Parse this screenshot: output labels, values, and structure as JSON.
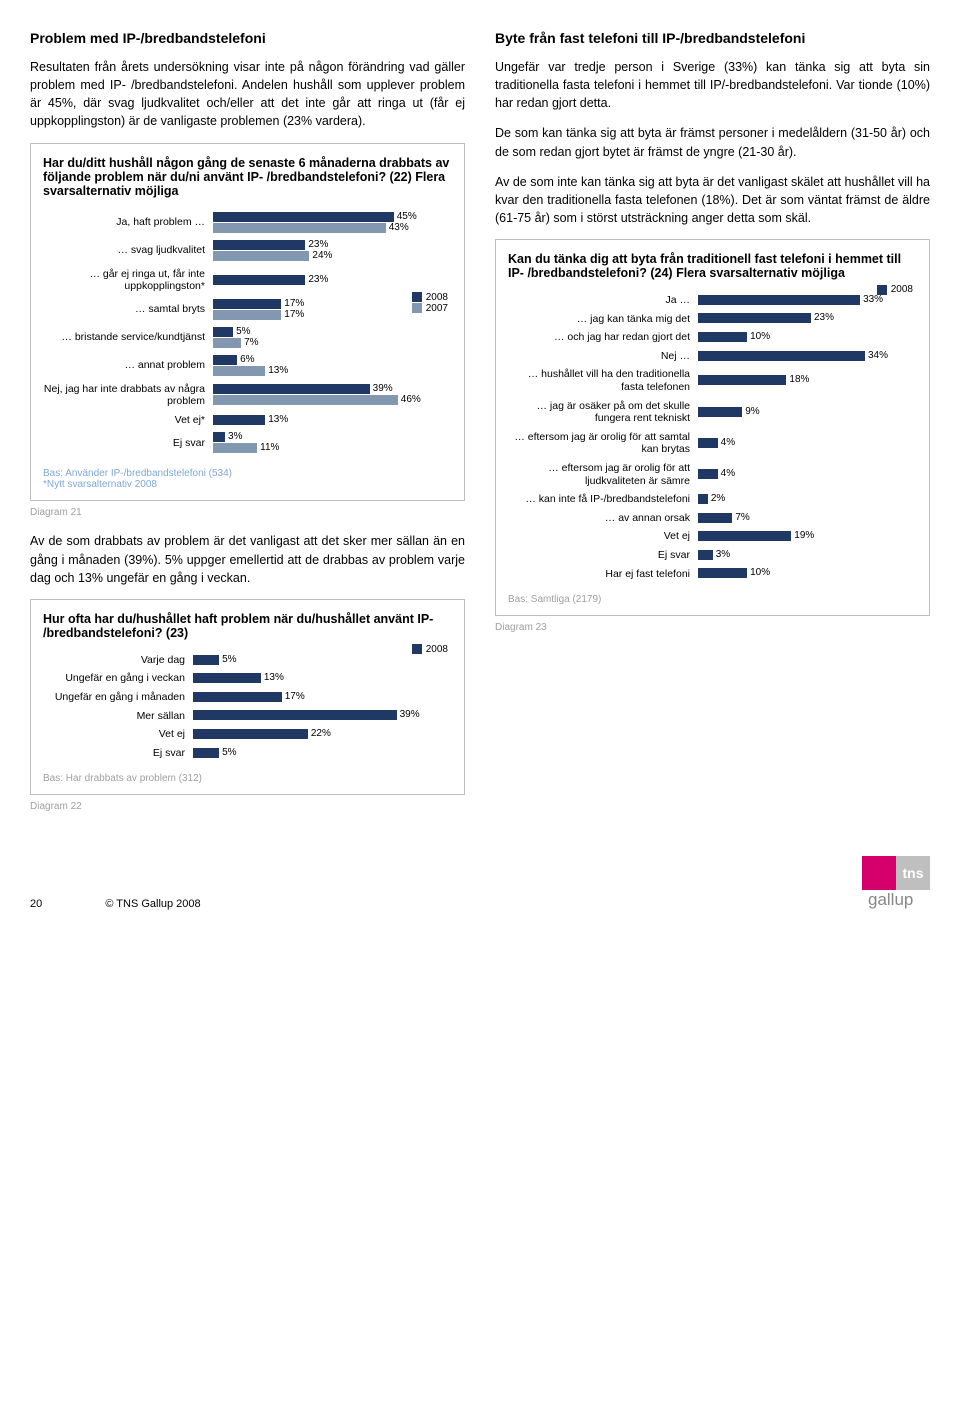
{
  "colors": {
    "c2008": "#1f3864",
    "c2007": "#8497b0",
    "border": "#bfbfbf",
    "base_text": "#7fa8d9",
    "grey_text": "#a0a0a0"
  },
  "left": {
    "heading": "Problem med IP-/bredbandstelefoni",
    "p1": "Resultaten från årets undersökning visar inte på någon förändring vad gäller problem med IP- /bredbandstelefoni. Andelen hushåll som upplever problem är 45%, där svag ljudkvalitet och/eller att det inte går att ringa ut (får ej uppkopplingston) är de vanligaste problemen (23% vardera).",
    "chart1": {
      "title": "Har du/ditt hushåll någon gång de senaste 6 månaderna drabbats av följande problem när du/ni använt IP- /bredbandstelefoni? (22) Flera svarsalternativ möjliga",
      "rows": [
        {
          "label": "Ja, haft problem …",
          "v": [
            45,
            43
          ]
        },
        {
          "label": "… svag ljudkvalitet",
          "v": [
            23,
            24
          ]
        },
        {
          "label": "… går ej ringa ut, får inte uppkopplingston*",
          "v": [
            23,
            null
          ]
        },
        {
          "label": "… samtal bryts",
          "v": [
            17,
            17
          ]
        },
        {
          "label": "… bristande service/kundtjänst",
          "v": [
            5,
            7
          ]
        },
        {
          "label": "… annat problem",
          "v": [
            6,
            13
          ]
        },
        {
          "label": "Nej, jag har inte drabbats av några problem",
          "v": [
            39,
            46
          ]
        },
        {
          "label": "Vet ej*",
          "v": [
            13,
            null
          ]
        },
        {
          "label": "Ej svar",
          "v": [
            3,
            11
          ]
        }
      ],
      "legend": [
        "2008",
        "2007"
      ],
      "base": "Bas: Använder IP-/bredbandstelefoni (534)\n*Nytt svarsalternativ 2008"
    },
    "diagram1_label": "Diagram 21",
    "p2": "Av de som drabbats av problem är det vanligast att det sker mer sällan än en gång i månaden (39%). 5% uppger emellertid att de drabbas av problem varje dag och 13% ungefär en gång i veckan.",
    "chart2": {
      "title": "Hur ofta har du/hushållet haft problem när du/hushållet använt IP- /bredbandstelefoni? (23)",
      "rows": [
        {
          "label": "Varje dag",
          "v": [
            5
          ]
        },
        {
          "label": "Ungefär en gång i veckan",
          "v": [
            13
          ]
        },
        {
          "label": "Ungefär en gång i månaden",
          "v": [
            17
          ]
        },
        {
          "label": "Mer sällan",
          "v": [
            39
          ]
        },
        {
          "label": "Vet ej",
          "v": [
            22
          ]
        },
        {
          "label": "Ej svar",
          "v": [
            5
          ]
        }
      ],
      "legend": [
        "2008"
      ],
      "base": "Bas: Har drabbats av problem (312)"
    },
    "diagram2_label": "Diagram 22"
  },
  "right": {
    "heading": "Byte från fast telefoni till IP-/bredbandstelefoni",
    "p1": "Ungefär var tredje person i Sverige (33%) kan tänka sig att byta sin traditionella fasta telefoni i hemmet till IP/-bredbandstelefoni. Var tionde (10%) har redan gjort detta.",
    "p2": "De som kan tänka sig att byta är främst personer i medelåldern (31-50 år) och de som redan gjort bytet är främst de yngre (21-30 år).",
    "p3": "Av de som inte kan tänka sig att byta är det vanligast skälet att hushållet vill ha kvar den traditionella fasta telefonen (18%). Det är som väntat främst de äldre (61-75 år) som i störst utsträckning anger detta som skäl.",
    "chart3": {
      "title": "Kan du tänka dig att byta från traditionell fast telefoni i hemmet till IP- /bredbandstelefoni? (24) Flera svarsalternativ möjliga",
      "rows": [
        {
          "label": "Ja …",
          "v": [
            33
          ]
        },
        {
          "label": "… jag kan tänka mig det",
          "v": [
            23
          ]
        },
        {
          "label": "… och jag har redan gjort det",
          "v": [
            10
          ]
        },
        {
          "label": "Nej …",
          "v": [
            34
          ]
        },
        {
          "label": "… hushållet vill ha den traditionella fasta telefonen",
          "v": [
            18
          ]
        },
        {
          "label": "… jag är osäker på om det skulle fungera rent tekniskt",
          "v": [
            9
          ]
        },
        {
          "label": "… eftersom jag är orolig för att samtal kan brytas",
          "v": [
            4
          ]
        },
        {
          "label": "… eftersom jag är orolig för att ljudkvaliteten är sämre",
          "v": [
            4
          ]
        },
        {
          "label": "… kan inte få IP-/bredbandstelefoni",
          "v": [
            2
          ]
        },
        {
          "label": "… av annan orsak",
          "v": [
            7
          ]
        },
        {
          "label": "Vet ej",
          "v": [
            19
          ]
        },
        {
          "label": "Ej svar",
          "v": [
            3
          ]
        },
        {
          "label": "Har ej fast telefoni",
          "v": [
            10
          ]
        }
      ],
      "legend": [
        "2008"
      ],
      "base": "Bas: Samtliga (2179)"
    },
    "diagram3_label": "Diagram 23"
  },
  "footer": {
    "page": "20",
    "copyright": "© TNS Gallup 2008",
    "logo_tns": "tns",
    "logo_gallup": "gallup"
  }
}
